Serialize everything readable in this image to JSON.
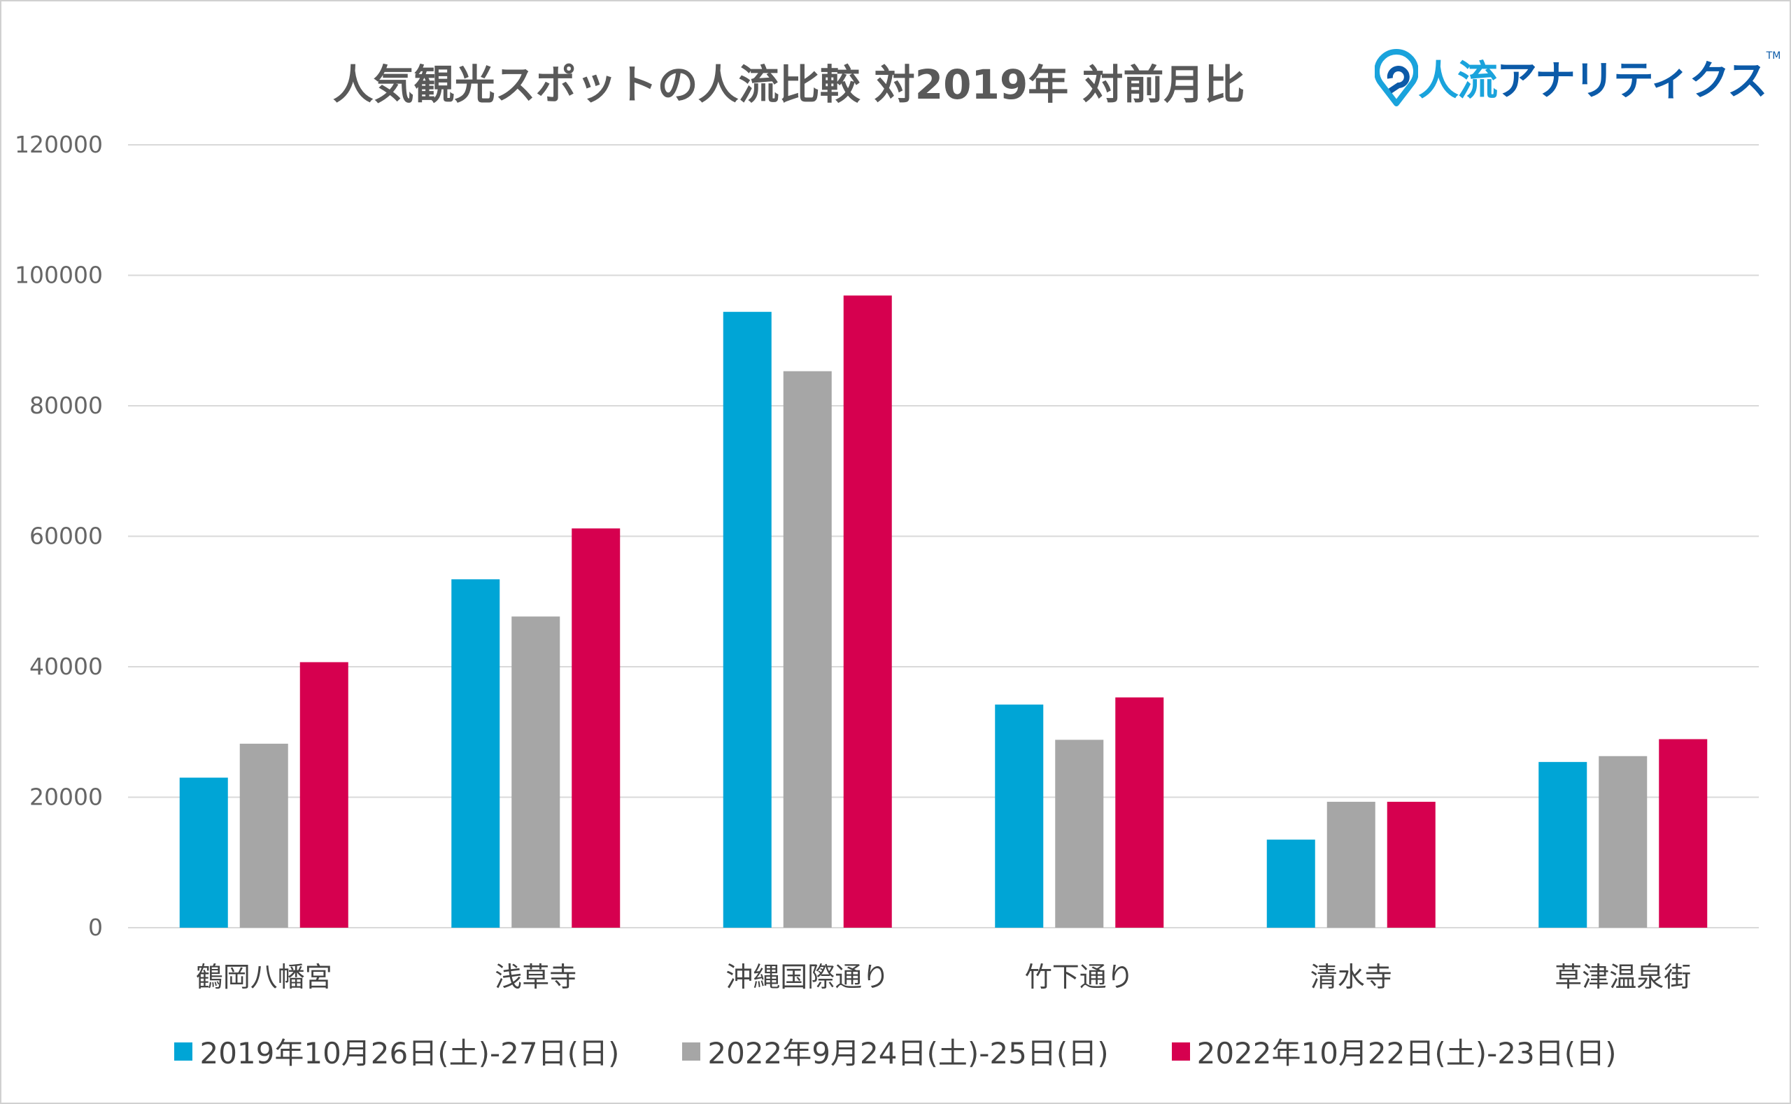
{
  "title": "人気観光スポットの人流比較 対2019年 対前月比",
  "logo": {
    "text_accent": "人流",
    "text_main": "アナリティクス",
    "tm": "TM"
  },
  "chart_data": {
    "type": "bar",
    "title": "人気観光スポットの人流比較 対2019年 対前月比",
    "categories": [
      "鶴岡八幡宮",
      "浅草寺",
      "沖縄国際通り",
      "竹下通り",
      "清水寺",
      "草津温泉街"
    ],
    "series": [
      {
        "name": "2019年10月26日(土)-27日(日)",
        "color": "#00a5d6",
        "values": [
          23000,
          53400,
          94400,
          34200,
          13500,
          25400
        ]
      },
      {
        "name": "2022年9月24日(土)-25日(日)",
        "color": "#a6a6a6",
        "values": [
          28200,
          47700,
          85300,
          28800,
          19300,
          26300
        ]
      },
      {
        "name": "2022年10月22日(土)-23日(日)",
        "color": "#d6004f",
        "values": [
          40700,
          61200,
          96900,
          35300,
          19300,
          28900
        ]
      }
    ],
    "ylim": [
      0,
      120000
    ],
    "yticks": [
      0,
      20000,
      40000,
      60000,
      80000,
      100000,
      120000
    ],
    "grid": true,
    "legend": "bottom"
  }
}
